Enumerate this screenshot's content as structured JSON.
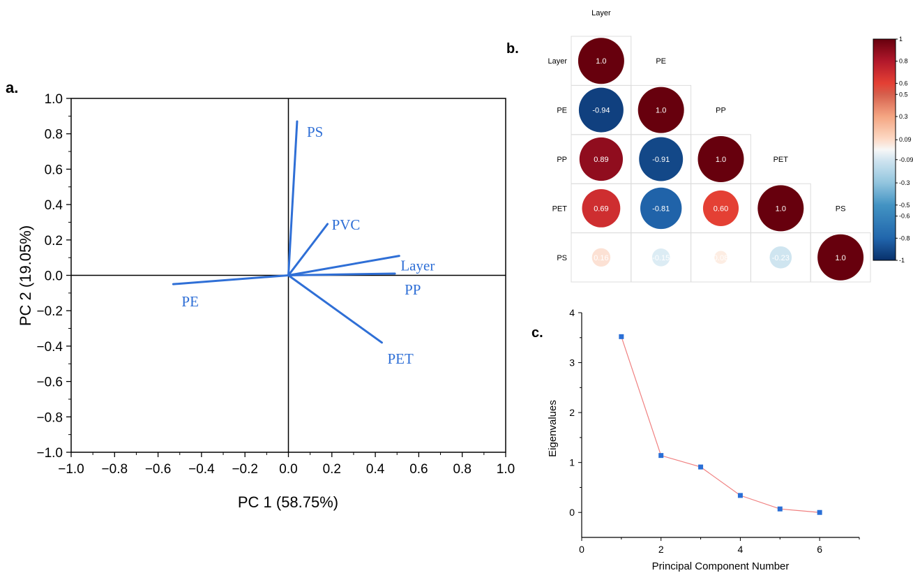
{
  "panels": {
    "a": {
      "letter": "a."
    },
    "b": {
      "letter": "b."
    },
    "c": {
      "letter": "c."
    }
  },
  "colors": {
    "loading": "#2f6fd6",
    "axis": "#000000",
    "eigen_marker": "#2a6fd6",
    "eigen_line": "#f08080",
    "cmap_neg": "#08306b",
    "cmap_pos": "#67000d"
  },
  "chart_data": [
    {
      "panel": "a",
      "type": "scatter",
      "subtype": "biplot-loadings",
      "xlabel": "PC 1 (58.75%)",
      "ylabel": "PC 2 (19.05%)",
      "xlim": [
        -1.0,
        1.0
      ],
      "ylim": [
        -1.0,
        1.0
      ],
      "x_ticks": [
        "−1.0",
        "−0.8",
        "−0.6",
        "−0.4",
        "−0.2",
        "0.0",
        "0.2",
        "0.4",
        "0.6",
        "0.8",
        "1.0"
      ],
      "y_ticks": [
        "1.0",
        "0.8",
        "0.6",
        "0.4",
        "0.2",
        "0.0",
        "−0.2",
        "−0.4",
        "−0.6",
        "−0.8",
        "−1.0"
      ],
      "grid": false,
      "vectors": [
        {
          "name": "PS",
          "x": 0.04,
          "y": 0.87
        },
        {
          "name": "PVC",
          "x": 0.18,
          "y": 0.29
        },
        {
          "name": "Layer",
          "x": 0.51,
          "y": 0.11
        },
        {
          "name": "PP",
          "x": 0.49,
          "y": 0.01
        },
        {
          "name": "PET",
          "x": 0.43,
          "y": -0.38
        },
        {
          "name": "PE",
          "x": -0.53,
          "y": -0.05
        }
      ]
    },
    {
      "panel": "b",
      "type": "heatmap",
      "subtype": "correlation-circles",
      "variables": [
        "Layer",
        "PE",
        "PP",
        "PET",
        "PS"
      ],
      "matrix": [
        [
          1.0,
          null,
          null,
          null,
          null
        ],
        [
          -0.94,
          1.0,
          null,
          null,
          null
        ],
        [
          0.89,
          -0.91,
          1.0,
          null,
          null
        ],
        [
          0.69,
          -0.81,
          0.6,
          1.0,
          null
        ],
        [
          0.16,
          -0.15,
          0.08,
          -0.23,
          1.0
        ]
      ],
      "cell_labels": [
        [
          "1.0",
          "",
          "",
          "",
          ""
        ],
        [
          "-0.94",
          "1.0",
          "",
          "",
          ""
        ],
        [
          "0.89",
          "-0.91",
          "1.0",
          "",
          ""
        ],
        [
          "0.69",
          "-0.81",
          "0.60",
          "1.0",
          ""
        ],
        [
          "0.16",
          "-0.15",
          "0.08",
          "-0.23",
          "1.0"
        ]
      ],
      "colorbar_ticks": [
        1,
        0.8,
        0.6,
        0.5,
        0.3,
        0.09,
        -0.09,
        -0.3,
        -0.5,
        -0.6,
        -0.8,
        -1
      ],
      "colorbar_labels": [
        "1",
        "0.8",
        "0.6",
        "0.5",
        "0.3",
        "0.09",
        "-0.09",
        "-0.3",
        "-0.5",
        "-0.6",
        "-0.8",
        "-1"
      ],
      "colorbar_range": [
        -1,
        1
      ]
    },
    {
      "panel": "c",
      "type": "line",
      "subtype": "scree",
      "xlabel": "Principal Component Number",
      "ylabel": "Eigenvalues",
      "xlim": [
        0,
        7
      ],
      "ylim": [
        -0.5,
        4
      ],
      "x_ticks": [
        0,
        2,
        4,
        6
      ],
      "y_ticks": [
        0,
        1,
        2,
        3,
        4
      ],
      "grid": false,
      "x": [
        1,
        2,
        3,
        4,
        5,
        6
      ],
      "values": [
        3.52,
        1.14,
        0.91,
        0.34,
        0.07,
        0.0
      ]
    }
  ]
}
